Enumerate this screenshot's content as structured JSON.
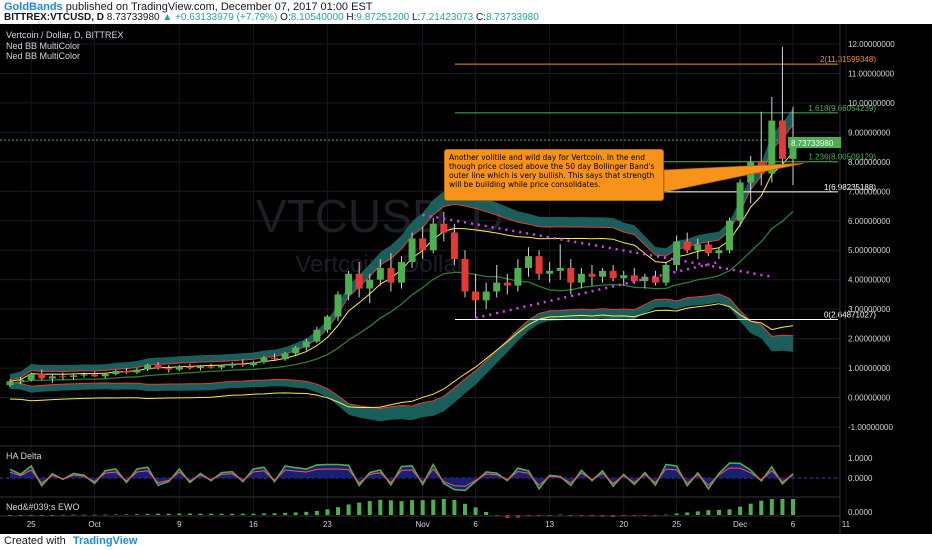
{
  "header": {
    "author": "GoldBands",
    "published_text": "published on TradingView.com, December 07, 2017 01:00 EST",
    "symbol": "BITTREX:VTCUSD, D",
    "price": "8.73733980",
    "change": "▲ +0.63133979 (+7.79%)",
    "o_label": "O:",
    "o_value": "8.10540000",
    "h_label": "H:",
    "h_value": "9.87251200",
    "l_label": "L:",
    "l_value": "7.21423073",
    "c_label": "C:",
    "c_value": "8.73733980"
  },
  "legend": {
    "title": "Vertcoin / Dollar, D, BITTREX",
    "ind1": "Ned BB MultiColor",
    "ind2": "Ned BB MultiColor"
  },
  "watermark": {
    "ticker": "VTCUSD, D",
    "name": "Vertcoin / Dollar"
  },
  "annotation": "Another volitile and wild day for Vertcoin. In the end though price closed above the 50 day Bollinger Band's outer line which is very bullish. This says that strength will be building while price consolidates.",
  "fib_labels": [
    "2(11.31599348)",
    "1.618(9.66054239)",
    "1.236(8.00509129)",
    "1(6.98235188)",
    "0(2.64871027)"
  ],
  "price_tag": "8.73733980",
  "panels": {
    "delta": {
      "label": "HA Delta",
      "ticks": [
        "1.0000",
        "0.0000"
      ]
    },
    "ewo": {
      "label": "Ned&#039;s EWO",
      "ticks": [
        "0.0000"
      ]
    }
  },
  "footer": {
    "created_with": "Created with",
    "brand": "TradingView"
  },
  "colors": {
    "up": "#4caf50",
    "down": "#e53935",
    "fib_orange": "#f7931a",
    "fib_green": "#4caf50",
    "teal": "#26a69a",
    "yellow": "#ffeb3b"
  },
  "chart_data": {
    "type": "candlestick",
    "y_axis": {
      "min": -1.0,
      "max": 12.0,
      "ticks": [
        "12.00000000",
        "11.00000000",
        "10.00000000",
        "9.00000000",
        "8.00000000",
        "7.00000000",
        "6.00000000",
        "5.00000000",
        "4.00000000",
        "3.00000000",
        "2.00000000",
        "1.00000000",
        "0.00000000",
        "-1.00000000"
      ]
    },
    "x_tick_labels": [
      "25",
      "Oct",
      "9",
      "16",
      "23",
      "Nov",
      "6",
      "13",
      "20",
      "25",
      "Dec",
      "6",
      "11"
    ],
    "x_tick_days": [
      -6,
      0,
      8,
      15,
      22,
      31,
      36,
      43,
      50,
      55,
      61,
      66,
      71
    ],
    "candles": [
      [
        0.42,
        0.62,
        0.35,
        0.55
      ],
      [
        0.55,
        0.7,
        0.45,
        0.6
      ],
      [
        0.6,
        0.85,
        0.55,
        0.8
      ],
      [
        0.8,
        0.95,
        0.6,
        0.65
      ],
      [
        0.65,
        0.8,
        0.5,
        0.72
      ],
      [
        0.72,
        0.85,
        0.6,
        0.7
      ],
      [
        0.7,
        0.8,
        0.6,
        0.75
      ],
      [
        0.75,
        0.85,
        0.68,
        0.78
      ],
      [
        0.78,
        0.88,
        0.7,
        0.72
      ],
      [
        0.72,
        0.85,
        0.65,
        0.8
      ],
      [
        0.8,
        0.95,
        0.75,
        0.9
      ],
      [
        0.9,
        1.0,
        0.8,
        0.85
      ],
      [
        0.85,
        1.0,
        0.8,
        0.95
      ],
      [
        0.95,
        1.15,
        0.9,
        1.1
      ],
      [
        1.1,
        1.2,
        0.95,
        1.0
      ],
      [
        1.0,
        1.1,
        0.85,
        0.95
      ],
      [
        0.95,
        1.1,
        0.9,
        1.05
      ],
      [
        1.05,
        1.15,
        0.95,
        1.0
      ],
      [
        1.0,
        1.1,
        0.92,
        1.05
      ],
      [
        1.05,
        1.15,
        0.98,
        1.02
      ],
      [
        1.02,
        1.1,
        0.95,
        1.08
      ],
      [
        1.08,
        1.2,
        1.0,
        1.15
      ],
      [
        1.15,
        1.3,
        1.05,
        1.1
      ],
      [
        1.1,
        1.25,
        1.05,
        1.2
      ],
      [
        1.2,
        1.4,
        1.15,
        1.35
      ],
      [
        1.35,
        1.5,
        1.25,
        1.3
      ],
      [
        1.3,
        1.55,
        1.25,
        1.5
      ],
      [
        1.5,
        1.75,
        1.4,
        1.7
      ],
      [
        1.7,
        2.0,
        1.6,
        1.9
      ],
      [
        1.9,
        2.4,
        1.85,
        2.3
      ],
      [
        2.3,
        2.8,
        2.2,
        2.75
      ],
      [
        2.75,
        3.6,
        2.6,
        3.5
      ],
      [
        3.5,
        4.3,
        3.3,
        4.2
      ],
      [
        4.2,
        4.6,
        3.4,
        3.7
      ],
      [
        3.7,
        4.2,
        3.2,
        4.0
      ],
      [
        4.0,
        4.7,
        3.8,
        4.4
      ],
      [
        4.4,
        4.9,
        3.6,
        3.9
      ],
      [
        3.9,
        4.8,
        3.7,
        4.6
      ],
      [
        4.6,
        5.6,
        4.4,
        5.4
      ],
      [
        5.4,
        5.8,
        4.7,
        5.0
      ],
      [
        5.0,
        6.1,
        4.9,
        5.9
      ],
      [
        5.9,
        6.3,
        5.3,
        5.6
      ],
      [
        5.6,
        5.9,
        4.5,
        4.7
      ],
      [
        4.7,
        5.0,
        3.4,
        3.6
      ],
      [
        3.6,
        4.2,
        2.7,
        3.3
      ],
      [
        3.3,
        3.9,
        3.0,
        3.6
      ],
      [
        3.6,
        4.5,
        3.4,
        3.9
      ],
      [
        3.9,
        4.2,
        3.5,
        3.8
      ],
      [
        3.8,
        4.7,
        3.6,
        4.4
      ],
      [
        4.4,
        5.1,
        4.1,
        4.8
      ],
      [
        4.8,
        5.0,
        4.0,
        4.2
      ],
      [
        4.2,
        4.6,
        3.9,
        4.3
      ],
      [
        4.3,
        5.2,
        4.0,
        4.4
      ],
      [
        4.4,
        4.7,
        3.5,
        3.9
      ],
      [
        3.9,
        4.4,
        3.7,
        4.2
      ],
      [
        4.2,
        4.5,
        3.8,
        4.1
      ],
      [
        4.1,
        4.4,
        3.9,
        4.3
      ],
      [
        4.3,
        4.5,
        3.95,
        4.05
      ],
      [
        4.05,
        4.3,
        3.8,
        4.15
      ],
      [
        4.15,
        4.4,
        3.85,
        3.95
      ],
      [
        3.95,
        4.2,
        3.7,
        4.1
      ],
      [
        4.1,
        4.3,
        3.8,
        3.9
      ],
      [
        3.9,
        4.6,
        3.8,
        4.5
      ],
      [
        4.5,
        5.5,
        4.3,
        5.3
      ],
      [
        5.3,
        5.6,
        4.9,
        5.0
      ],
      [
        5.0,
        5.4,
        4.7,
        5.2
      ],
      [
        5.2,
        5.3,
        4.8,
        4.9
      ],
      [
        4.9,
        5.1,
        4.7,
        5.0
      ],
      [
        5.0,
        6.1,
        4.9,
        6.0
      ],
      [
        6.0,
        7.4,
        5.8,
        7.3
      ],
      [
        7.3,
        8.2,
        6.6,
        8.0
      ],
      [
        8.0,
        9.7,
        7.2,
        7.6
      ],
      [
        7.6,
        10.2,
        7.3,
        9.4
      ],
      [
        9.4,
        11.9,
        7.9,
        8.1
      ],
      [
        8.1,
        9.87,
        7.21,
        8.74
      ]
    ],
    "fib_levels": [
      11.31599348,
      9.66054239,
      8.00509129,
      6.98235188,
      2.64871027
    ],
    "current_price": 8.7373398
  }
}
